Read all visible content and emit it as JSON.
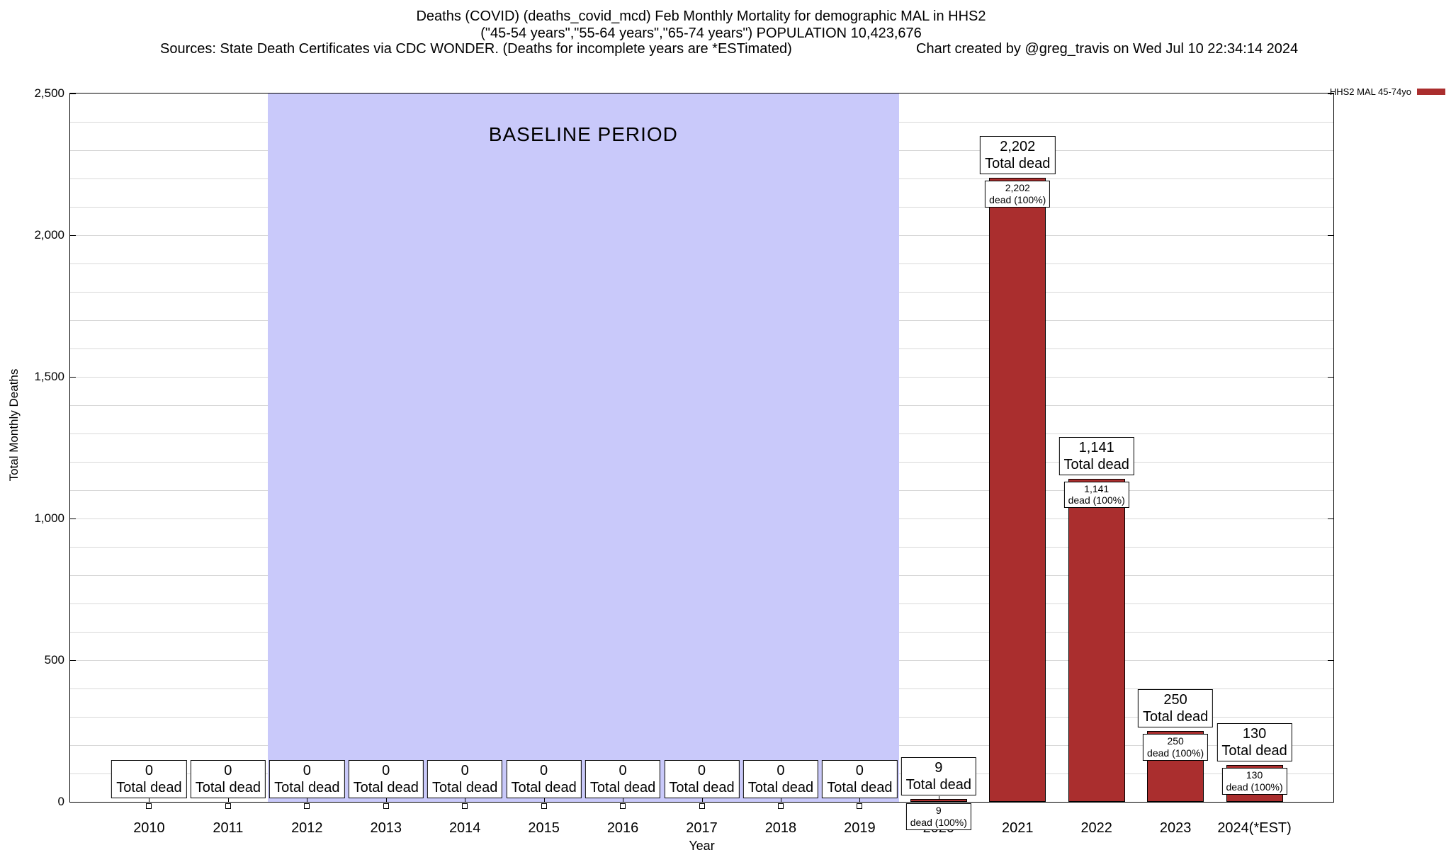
{
  "header": {
    "title_line1": "Deaths (COVID) (deaths_covid_mcd) Feb Monthly Mortality for demographic MAL in HHS2",
    "title_line2": "(\"45-54 years\",\"55-64 years\",\"65-74 years\") POPULATION 10,423,676",
    "sources": "Sources: State Death Certificates via CDC WONDER. (Deaths for incomplete years are *ESTimated)",
    "credit": "Chart created by @greg_travis on Wed Jul 10 22:34:14 2024"
  },
  "legend": {
    "label": "HHS2 MAL 45-74yo",
    "swatch_color": "#aa2e2e"
  },
  "chart_data": {
    "type": "bar",
    "title": "Deaths (COVID) (deaths_covid_mcd) Feb Monthly Mortality for demographic MAL in HHS2",
    "categories": [
      "2010",
      "2011",
      "2012",
      "2013",
      "2014",
      "2015",
      "2016",
      "2017",
      "2018",
      "2019",
      "2020",
      "2021",
      "2022",
      "2023",
      "2024(*EST)"
    ],
    "values": [
      0,
      0,
      0,
      0,
      0,
      0,
      0,
      0,
      0,
      0,
      9,
      2202,
      1141,
      250,
      130
    ],
    "bar_label_suffix": "Total dead",
    "inner_label_suffix": "dead (100%)",
    "xlabel": "Year",
    "ylabel": "Total Monthly Deaths",
    "ylim": [
      0,
      2500
    ],
    "ytick_step": 500,
    "grid_step": 100,
    "grid_on": true,
    "bar_color": "#aa2e2e",
    "legend_position": "top-right-outside",
    "baseline": {
      "label": "BASELINE PERIOD",
      "from_index": 2,
      "to_index": 9,
      "color": "#c9c9fa"
    }
  }
}
